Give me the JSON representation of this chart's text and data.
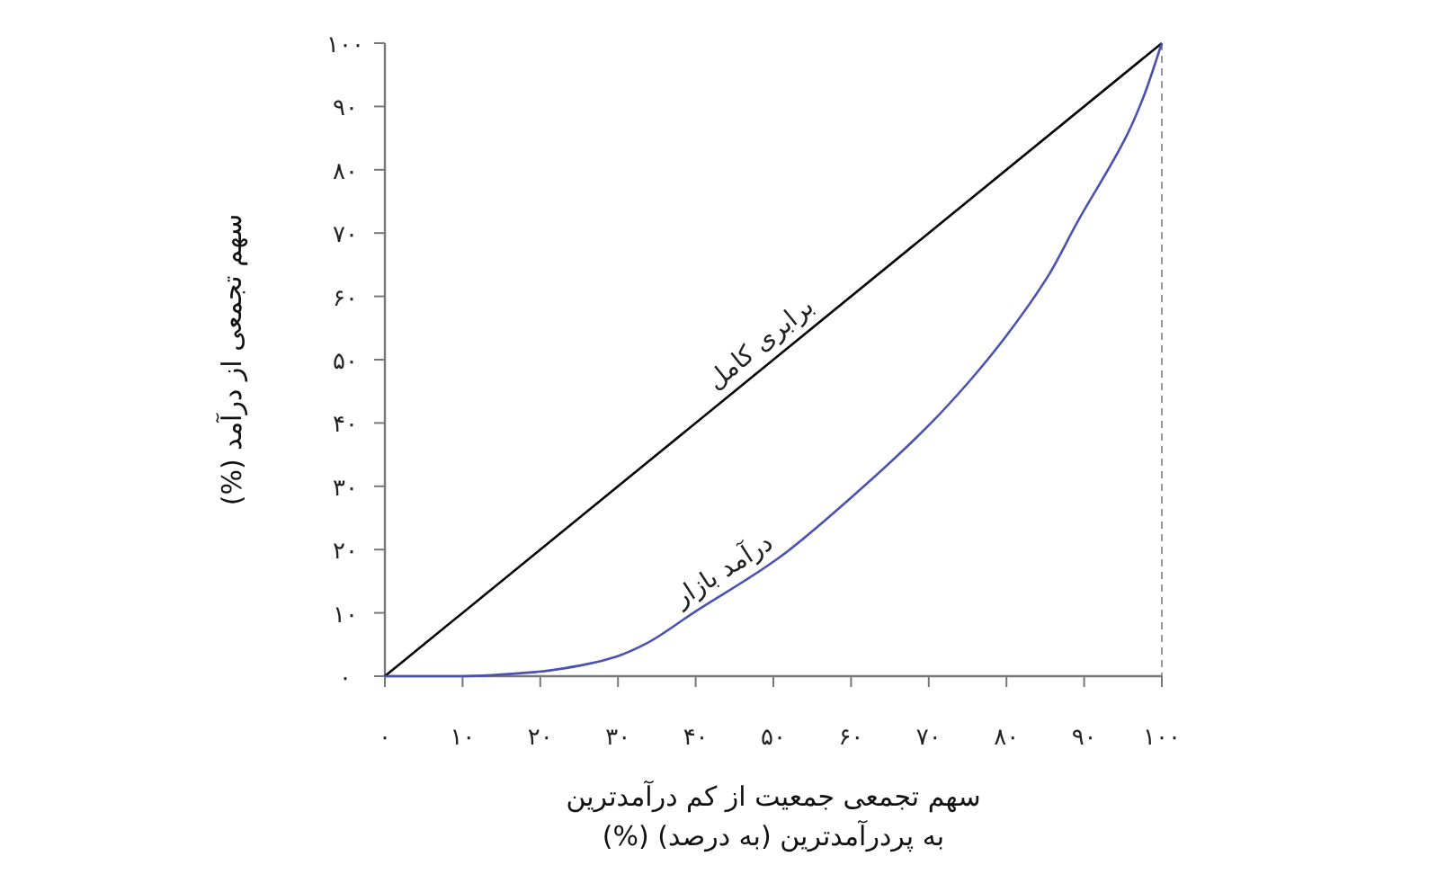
{
  "chart_data": {
    "type": "line",
    "xlabel": "سهم تجمعی جمعیت از کم درآمدترین\nبه پردرآمدترین (به درصد) (%)",
    "ylabel": "سهم تجمعی از درآمد (%)",
    "series": [
      {
        "color": "#000000",
        "x": [
          0,
          100
        ],
        "values": [
          0,
          100
        ]
      },
      {
        "color": "#4a52b0",
        "x": [
          0,
          9.8,
          19.8,
          26,
          29.8,
          33.7,
          39.7,
          50.6,
          59.9,
          69.9,
          75.3,
          80,
          85.4,
          89.2,
          95.4,
          97.7,
          100
        ],
        "values": [
          0,
          0,
          0.7,
          1.9,
          3.1,
          5.2,
          10,
          18.6,
          28.1,
          39.5,
          46.7,
          53.8,
          63.3,
          71.9,
          85.2,
          91.7,
          100
        ]
      }
    ],
    "annotations": [
      {
        "text": "برابری کامل",
        "x": 50,
        "y": 50
      },
      {
        "text": "درآمد بازار",
        "x": 45,
        "y": 14
      }
    ],
    "ref_lines": [
      {
        "axis": "x",
        "value": 100,
        "color": "#999999",
        "line_style": "dashed"
      }
    ],
    "xlim": [
      0,
      100
    ],
    "ylim": [
      0,
      100
    ],
    "xticks": [
      {
        "value": 0,
        "label": "۰"
      },
      {
        "value": 10,
        "label": "۱۰"
      },
      {
        "value": 20,
        "label": "۲۰"
      },
      {
        "value": 30,
        "label": "۳۰"
      },
      {
        "value": 40,
        "label": "۴۰"
      },
      {
        "value": 50,
        "label": "۵۰"
      },
      {
        "value": 60,
        "label": "۶۰"
      },
      {
        "value": 70,
        "label": "۷۰"
      },
      {
        "value": 80,
        "label": "۸۰"
      },
      {
        "value": 90,
        "label": "۹۰"
      },
      {
        "value": 100,
        "label": "۱۰۰"
      }
    ],
    "yticks": [
      {
        "value": 0,
        "label": "۰"
      },
      {
        "value": 10,
        "label": "۱۰"
      },
      {
        "value": 20,
        "label": "۲۰"
      },
      {
        "value": 30,
        "label": "۳۰"
      },
      {
        "value": 40,
        "label": "۴۰"
      },
      {
        "value": 50,
        "label": "۵۰"
      },
      {
        "value": 60,
        "label": "۶۰"
      },
      {
        "value": 70,
        "label": "۷۰"
      },
      {
        "value": 80,
        "label": "۸۰"
      },
      {
        "value": 90,
        "label": "۹۰"
      },
      {
        "value": 100,
        "label": "۱۰۰"
      }
    ],
    "grid": false,
    "marker": "none",
    "line_style": "solid"
  }
}
